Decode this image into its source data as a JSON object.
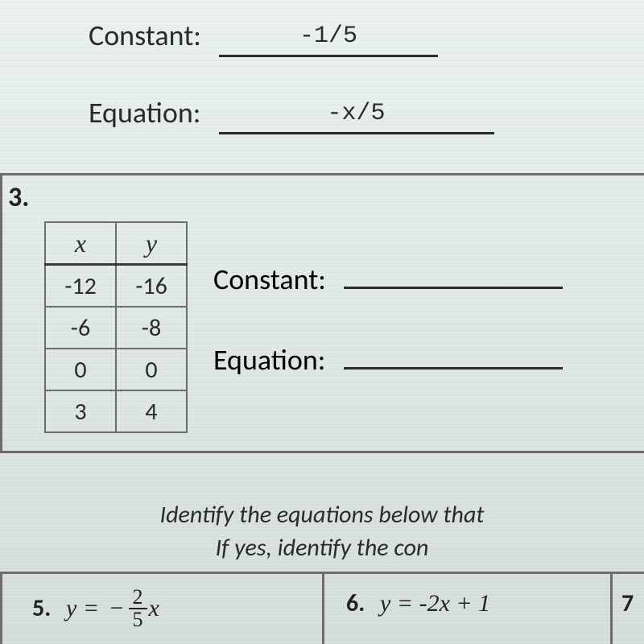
{
  "top": {
    "constant_label": "Constant:",
    "constant_value": "-1/5",
    "equation_label": "Equation:",
    "equation_value": "-x/5"
  },
  "p3": {
    "number": "3.",
    "table": {
      "head": {
        "x": "x",
        "y": "y"
      },
      "rows": [
        {
          "x": "-12",
          "y": "-16"
        },
        {
          "x": "-6",
          "y": "-8"
        },
        {
          "x": "0",
          "y": "0"
        },
        {
          "x": "3",
          "y": "4"
        }
      ]
    },
    "constant_label": "Constant:",
    "equation_label": "Equation:"
  },
  "identify": {
    "line1": "Identify the equations below that",
    "line2": "If yes, identify the con"
  },
  "p5": {
    "number": "5.",
    "lhs": "y",
    "eq": " = ",
    "neg": "−",
    "frac_num": "2",
    "frac_den": "5",
    "rhs": "x"
  },
  "p6": {
    "number": "6.",
    "expr": "y = -2x + 1"
  },
  "p7": {
    "number": "7"
  },
  "style": {
    "page_bg_top": "#ecf2f2",
    "page_bg_bottom": "#d6dede",
    "border_color": "#6d6d6d",
    "text_color": "#2b2b2b",
    "table_border": "#6d6d6d",
    "blank_underline": "#2b2b2b",
    "body_fontsize_pt": 27,
    "table_fontsize_pt": 22,
    "italic_header_font": "Times New Roman"
  }
}
